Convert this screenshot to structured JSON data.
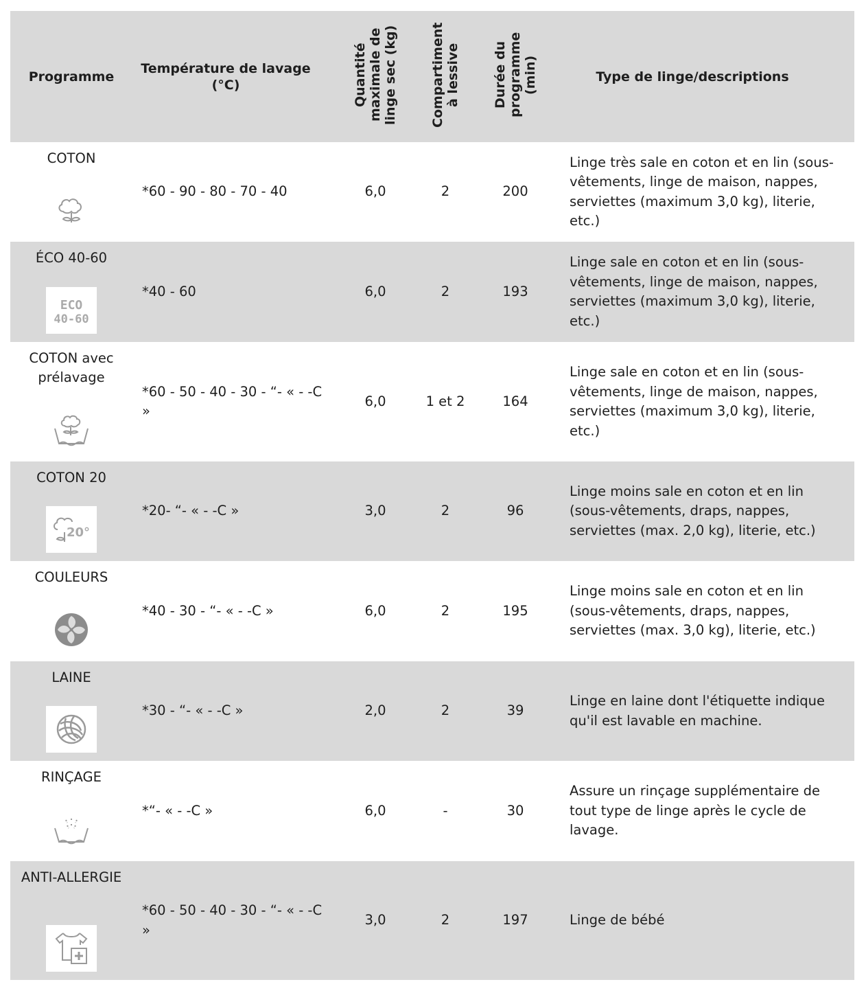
{
  "header": {
    "programme": "Programme",
    "temperature": "Température de lavage (°C)",
    "quantity": "Quantité maximale de linge sec (kg)",
    "compartment": "Compartiment à lessive",
    "duration": "Durée du programme (min)",
    "description": "Type de linge/descriptions"
  },
  "rows": [
    {
      "name": "COTON",
      "icon": "cotton-icon",
      "temp": "*60 - 90 - 80 - 70 - 40",
      "qty": "6,0",
      "comp": "2",
      "dur": "200",
      "desc": "Linge très sale en coton et en lin (sous-vêtements, linge de maison, nappes, serviettes (maximum 3,0 kg), literie, etc.)"
    },
    {
      "name": "ÉCO 40-60",
      "icon": "eco-40-60-icon",
      "icon_text": "ECO 40-60",
      "temp": "*40 - 60",
      "qty": "6,0",
      "comp": "2",
      "dur": "193",
      "desc": "Linge sale en coton et en lin (sous-vêtements, linge de maison, nappes, serviettes (maximum 3,0 kg), literie, etc.)"
    },
    {
      "name": "COTON avec prélavage",
      "icon": "cotton-prewash-icon",
      "temp": "*60 - 50 - 40 - 30 - “- « - -C »",
      "qty": "6,0",
      "comp": "1 et 2",
      "dur": "164",
      "desc": "Linge sale en coton et en lin (sous-vêtements, linge de maison, nappes, serviettes (maximum 3,0 kg), literie, etc.)"
    },
    {
      "name": "COTON 20",
      "icon": "cotton-20-icon",
      "icon_text": "20°",
      "temp": "*20- “- « - -C »",
      "qty": "3,0",
      "comp": "2",
      "dur": "96",
      "desc": "Linge moins sale en coton et en lin (sous-vêtements, draps, nappes, serviettes (max. 2,0 kg), literie, etc.)"
    },
    {
      "name": "COULEURS",
      "icon": "colors-icon",
      "temp": "*40 - 30 - “- « - -C »",
      "qty": "6,0",
      "comp": "2",
      "dur": "195",
      "desc": "Linge moins sale en coton et en lin (sous-vêtements, draps, nappes, serviettes (max. 3,0 kg), literie, etc.)"
    },
    {
      "name": "LAINE",
      "icon": "wool-icon",
      "temp": "*30 - “- « - -C »",
      "qty": "2,0",
      "comp": "2",
      "dur": "39",
      "desc": "Linge en laine dont l'étiquette indique qu'il est lavable en machine."
    },
    {
      "name": "RINÇAGE",
      "icon": "rinse-icon",
      "temp": "*“- « - -C »",
      "qty": "6,0",
      "comp": "-",
      "dur": "30",
      "desc": "Assure un rinçage supplémentaire de tout type de linge après le cycle de lavage."
    },
    {
      "name": "ANTI-ALLERGIE",
      "icon": "anti-allergy-icon",
      "temp": "*60 - 50 - 40 - 30 - “- « - -C »",
      "qty": "3,0",
      "comp": "2",
      "dur": "197",
      "desc": "Linge de bébé"
    }
  ],
  "colors": {
    "row_shade": "#d9d9d9",
    "icon": "#9a9a9a",
    "text": "#1e1e1e"
  }
}
